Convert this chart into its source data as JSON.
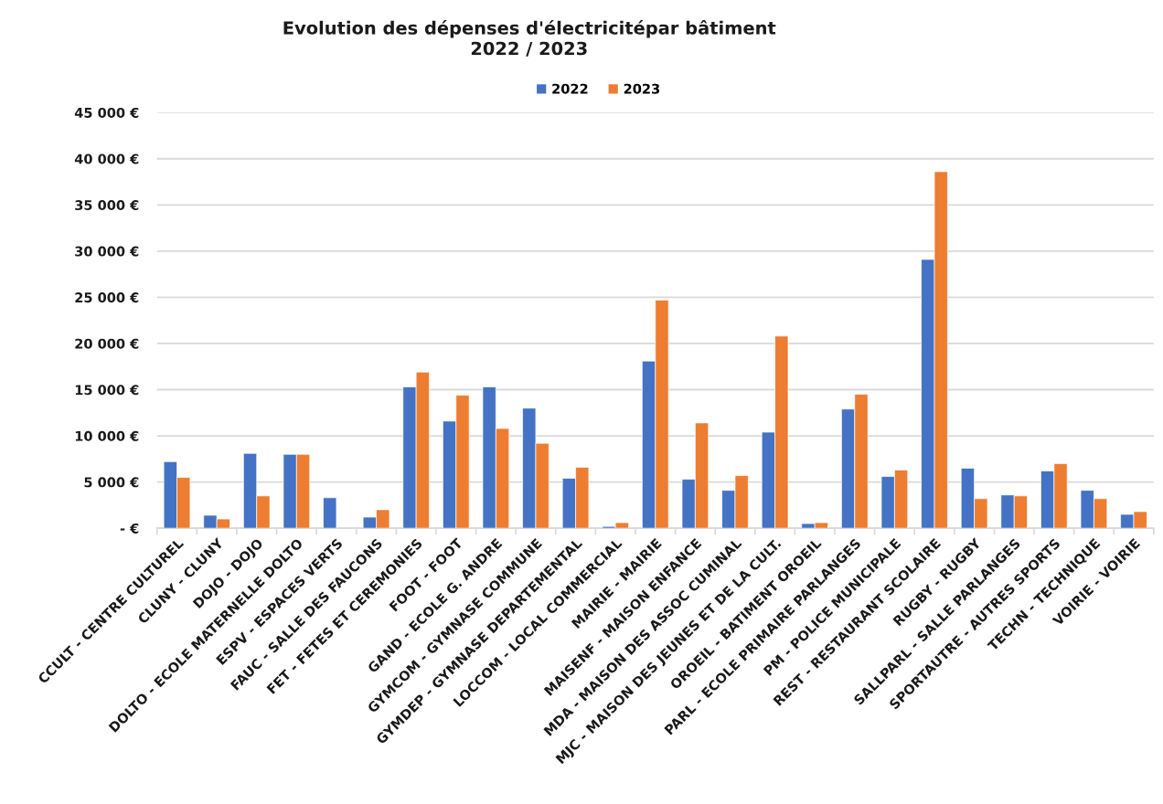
{
  "chart_data": {
    "type": "bar",
    "title": "Evolution des dépenses d'électricitépar bâtiment\n2022 / 2023",
    "categories": [
      "CCULT - CENTRE CULTUREL",
      "CLUNY - CLUNY",
      "DOJO - DOJO",
      "DOLTO - ECOLE MATERNELLE DOLTO",
      "ESPV - ESPACES VERTS",
      "FAUC - SALLE DES FAUCONS",
      "FET - FETES ET CEREMONIES",
      "FOOT - FOOT",
      "GAND - ECOLE G. ANDRE",
      "GYMCOM - GYMNASE COMMUNE",
      "GYMDEP - GYMNASE DEPARTEMENTAL",
      "LOCCOM - LOCAL COMMERCIAL",
      "MAIRIE - MAIRIE",
      "MAISENF - MAISON ENFANCE",
      "MDA - MAISON DES ASSOC CUMINAL",
      "MJC - MAISON DES JEUNES ET DE LA CULT.",
      "OROEIL - BATIMENT OROEIL",
      "PARL - ECOLE PRIMAIRE PARLANGES",
      "PM - POLICE MUNICIPALE",
      "REST - RESTAURANT SCOLAIRE",
      "RUGBY - RUGBY",
      "SALLPARL - SALLE PARLANGES",
      "SPORTAUTRE - AUTRES SPORTS",
      "TECHN - TECHNIQUE",
      "VOIRIE - VOIRIE"
    ],
    "series": [
      {
        "name": "2022",
        "color": "#4472c4",
        "values": [
          7200,
          1400,
          8100,
          8000,
          3300,
          1200,
          15300,
          11600,
          15300,
          13000,
          5400,
          200,
          18100,
          5300,
          4100,
          10400,
          500,
          12900,
          5600,
          29100,
          6500,
          3600,
          6200,
          4100,
          1500
        ]
      },
      {
        "name": "2023",
        "color": "#ed7d31",
        "values": [
          5500,
          1000,
          3500,
          8000,
          null,
          2000,
          16900,
          14400,
          10800,
          9200,
          6600,
          600,
          24700,
          11400,
          5700,
          20800,
          600,
          14500,
          6300,
          38600,
          3200,
          3500,
          7000,
          3200,
          1800
        ]
      }
    ],
    "ylim": [
      0,
      45000
    ],
    "yticks": [
      {
        "value": 0,
        "label": "- €"
      },
      {
        "value": 5000,
        "label": "5 000 €"
      },
      {
        "value": 10000,
        "label": "10 000 €"
      },
      {
        "value": 15000,
        "label": "15 000 €"
      },
      {
        "value": 20000,
        "label": "20 000 €"
      },
      {
        "value": 25000,
        "label": "25 000 €"
      },
      {
        "value": 30000,
        "label": "30 000 €"
      },
      {
        "value": 35000,
        "label": "35 000 €"
      },
      {
        "value": 40000,
        "label": "40 000 €"
      },
      {
        "value": 45000,
        "label": "45 000 €"
      }
    ],
    "grid": "y",
    "legend": "top"
  }
}
